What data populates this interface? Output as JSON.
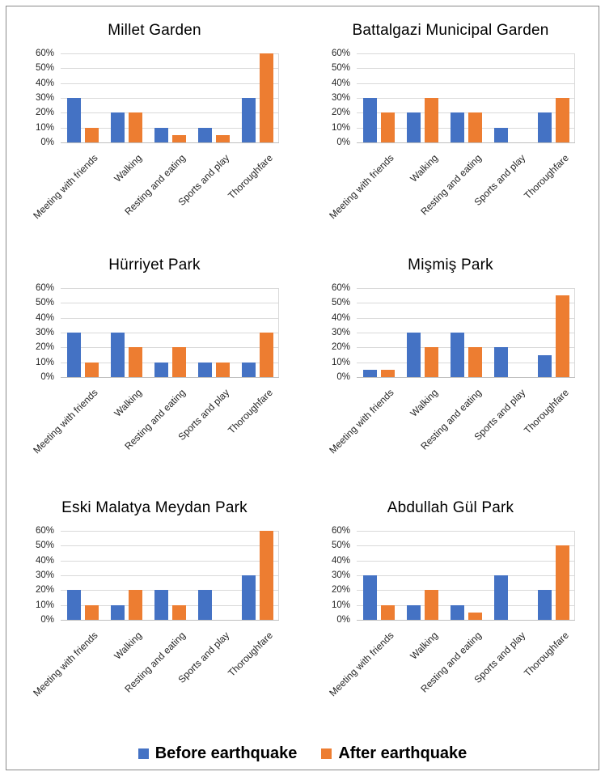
{
  "legend": {
    "items": [
      {
        "label": "Before earthquake",
        "color": "#4472C4"
      },
      {
        "label": "After earthquake",
        "color": "#ED7D31"
      }
    ],
    "position": "bottom-center-shared"
  },
  "colors": {
    "before_series": "#4472C4",
    "after_series": "#ED7D31",
    "gridline": "#D9D9D9",
    "axis_line": "#BFBFBF",
    "frame_border": "#8A8A8A"
  },
  "chart_data": [
    {
      "type": "bar",
      "title": "Millet Garden",
      "categories": [
        "Meeting with friends",
        "Walking",
        "Resting and eating",
        "Sports and play",
        "Thoroughfare"
      ],
      "series": [
        {
          "name": "Before earthquake",
          "color": "#4472C4",
          "values": [
            30,
            20,
            10,
            10,
            30
          ]
        },
        {
          "name": "After earthquake",
          "color": "#ED7D31",
          "values": [
            10,
            20,
            5,
            5,
            60
          ]
        }
      ],
      "xlabel": "",
      "ylabel": "",
      "ylim": [
        0,
        60
      ],
      "yticks": [
        0,
        10,
        20,
        30,
        40,
        50,
        60
      ],
      "ytick_format": "percent",
      "grid": true
    },
    {
      "type": "bar",
      "title": "Battalgazi Municipal Garden",
      "categories": [
        "Meeting with friends",
        "Walking",
        "Resting and eating",
        "Sports and play",
        "Thoroughfare"
      ],
      "series": [
        {
          "name": "Before earthquake",
          "color": "#4472C4",
          "values": [
            30,
            20,
            20,
            10,
            20
          ]
        },
        {
          "name": "After earthquake",
          "color": "#ED7D31",
          "values": [
            20,
            30,
            20,
            0,
            30
          ]
        }
      ],
      "xlabel": "",
      "ylabel": "",
      "ylim": [
        0,
        60
      ],
      "yticks": [
        0,
        10,
        20,
        30,
        40,
        50,
        60
      ],
      "ytick_format": "percent",
      "grid": true
    },
    {
      "type": "bar",
      "title": "Hürriyet Park",
      "categories": [
        "Meeting with friends",
        "Walking",
        "Resting and eating",
        "Sports and play",
        "Thoroughfare"
      ],
      "series": [
        {
          "name": "Before earthquake",
          "color": "#4472C4",
          "values": [
            30,
            30,
            10,
            10,
            10
          ]
        },
        {
          "name": "After earthquake",
          "color": "#ED7D31",
          "values": [
            10,
            20,
            20,
            10,
            30
          ]
        }
      ],
      "xlabel": "",
      "ylabel": "",
      "ylim": [
        0,
        60
      ],
      "yticks": [
        0,
        10,
        20,
        30,
        40,
        50,
        60
      ],
      "ytick_format": "percent",
      "grid": true
    },
    {
      "type": "bar",
      "title": "Mişmiş Park",
      "categories": [
        "Meeting with friends",
        "Walking",
        "Resting and eating",
        "Sports and play",
        "Thoroughfare"
      ],
      "series": [
        {
          "name": "Before earthquake",
          "color": "#4472C4",
          "values": [
            5,
            30,
            30,
            20,
            15
          ]
        },
        {
          "name": "After earthquake",
          "color": "#ED7D31",
          "values": [
            5,
            20,
            20,
            0,
            55
          ]
        }
      ],
      "xlabel": "",
      "ylabel": "",
      "ylim": [
        0,
        60
      ],
      "yticks": [
        0,
        10,
        20,
        30,
        40,
        50,
        60
      ],
      "ytick_format": "percent",
      "grid": true
    },
    {
      "type": "bar",
      "title": "Eski Malatya Meydan Park",
      "categories": [
        "Meeting with friends",
        "Walking",
        "Resting and eating",
        "Sports and play",
        "Thoroughfare"
      ],
      "series": [
        {
          "name": "Before earthquake",
          "color": "#4472C4",
          "values": [
            20,
            10,
            20,
            20,
            30
          ]
        },
        {
          "name": "After earthquake",
          "color": "#ED7D31",
          "values": [
            10,
            20,
            10,
            0,
            60
          ]
        }
      ],
      "xlabel": "",
      "ylabel": "",
      "ylim": [
        0,
        60
      ],
      "yticks": [
        0,
        10,
        20,
        30,
        40,
        50,
        60
      ],
      "ytick_format": "percent",
      "grid": true
    },
    {
      "type": "bar",
      "title": "Abdullah Gül Park",
      "categories": [
        "Meeting with friends",
        "Walking",
        "Resting and eating",
        "Sports and play",
        "Thoroughfare"
      ],
      "series": [
        {
          "name": "Before earthquake",
          "color": "#4472C4",
          "values": [
            30,
            10,
            10,
            30,
            20
          ]
        },
        {
          "name": "After earthquake",
          "color": "#ED7D31",
          "values": [
            10,
            20,
            5,
            0,
            50
          ]
        }
      ],
      "xlabel": "",
      "ylabel": "",
      "ylim": [
        0,
        60
      ],
      "yticks": [
        0,
        10,
        20,
        30,
        40,
        50,
        60
      ],
      "ytick_format": "percent",
      "grid": true
    }
  ]
}
